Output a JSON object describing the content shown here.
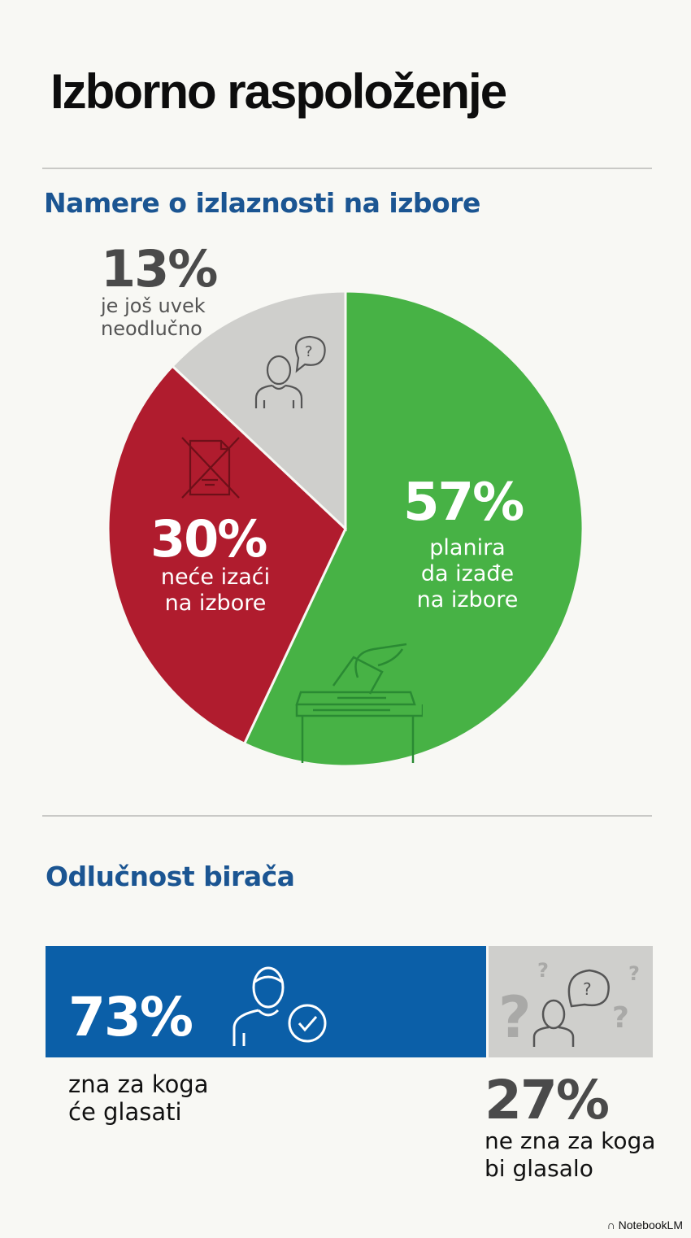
{
  "title": "Izborno raspoloženje",
  "footer": {
    "brand": "NotebookLM"
  },
  "colors": {
    "green": "#47b245",
    "red": "#b01c2e",
    "grey": "#cfcfcc",
    "blue": "#0b5fa8",
    "heading": "#1b5592"
  },
  "chart_data": [
    {
      "type": "pie",
      "title": "Namere o izlaznosti na izbore",
      "slices": [
        {
          "label": "planira da izađe na izbore",
          "value": 57,
          "value_label": "57%",
          "line1": "planira",
          "line2": "da izađe",
          "line3": "na izbore",
          "color": "#47b245",
          "icon": "ballot-box-icon"
        },
        {
          "label": "neće izaći na izbore",
          "value": 30,
          "value_label": "30%",
          "line1": "neće izaći",
          "line2": "na izbore",
          "color": "#b01c2e",
          "icon": "crossed-ballot-icon"
        },
        {
          "label": "je još uvek neodlučno",
          "value": 13,
          "value_label": "13%",
          "line1": "je još uvek",
          "line2": "neodlučno",
          "color": "#cfcfcc",
          "icon": "person-question-icon"
        }
      ]
    },
    {
      "type": "bar",
      "orientation": "horizontal-stacked",
      "title": "Odlučnost birača",
      "series": [
        {
          "name": "zna za koga će glasati",
          "value": 73,
          "value_label": "73%",
          "line1": "zna za koga",
          "line2": "će glasati",
          "color": "#0b5fa8",
          "icon": "person-check-icon"
        },
        {
          "name": "ne zna za koga bi glasalo",
          "value": 27,
          "value_label": "27%",
          "line1": "ne zna za koga",
          "line2": "bi glasalo",
          "color": "#cfcfcc",
          "icon": "person-questions-icon"
        }
      ]
    }
  ]
}
